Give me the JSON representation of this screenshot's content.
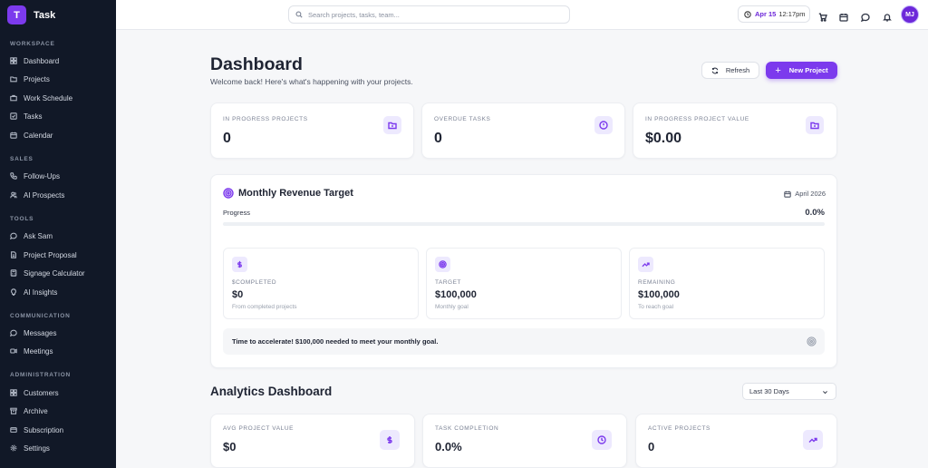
{
  "brand": {
    "logo_letter": "T",
    "name": "Task"
  },
  "sidebar": {
    "sections": [
      {
        "label": "WORKSPACE",
        "items": [
          "Dashboard",
          "Projects",
          "Work Schedule",
          "Tasks",
          "Calendar"
        ]
      },
      {
        "label": "SALES",
        "items": [
          "Follow-Ups",
          "AI Prospects"
        ]
      },
      {
        "label": "TOOLS",
        "items": [
          "Ask Sam",
          "Project Proposal",
          "Signage Calculator",
          "AI Insights"
        ]
      },
      {
        "label": "COMMUNICATION",
        "items": [
          "Messages",
          "Meetings"
        ]
      },
      {
        "label": "ADMINISTRATION",
        "items": [
          "Customers",
          "Archive",
          "Subscription",
          "Settings"
        ]
      }
    ]
  },
  "topbar": {
    "search_placeholder": "Search projects, tasks, team...",
    "date": "Apr 15",
    "time": "12:17pm",
    "avatar_initials": "MJ"
  },
  "header": {
    "title": "Dashboard",
    "subtitle": "Welcome back! Here's what's happening with your projects.",
    "refresh_label": "Refresh",
    "new_project_label": "New Project"
  },
  "stats": [
    {
      "label": "IN PROGRESS PROJECTS",
      "value": "0",
      "icon": "folder-icon"
    },
    {
      "label": "OVERDUE TASKS",
      "value": "0",
      "icon": "alert-circle-icon"
    },
    {
      "label": "IN PROGRESS PROJECT VALUE",
      "value": "$0.00",
      "icon": "folder-icon"
    }
  ],
  "revenue": {
    "title": "Monthly Revenue Target",
    "month": "April 2026",
    "progress_label": "Progress",
    "progress_value": "0.0%",
    "progress_fraction": 0.0,
    "cards": [
      {
        "label": "$COMPLETED",
        "value": "$0",
        "note": "From completed projects",
        "icon": "dollar-icon"
      },
      {
        "label": "TARGET",
        "value": "$100,000",
        "note": "Monthly goal",
        "icon": "target-icon"
      },
      {
        "label": "REMAINING",
        "value": "$100,000",
        "note": "To reach goal",
        "icon": "trending-up-icon"
      }
    ],
    "callout": "Time to accelerate! $100,000 needed to meet your monthly goal."
  },
  "analytics": {
    "title": "Analytics Dashboard",
    "range": "Last 30 Days",
    "stats": [
      {
        "label": "AVG PROJECT VALUE",
        "value": "$0",
        "icon": "dollar-icon"
      },
      {
        "label": "TASK COMPLETION",
        "value": "0.0%",
        "icon": "clock-icon"
      },
      {
        "label": "ACTIVE PROJECTS",
        "value": "0",
        "icon": "trending-up-icon"
      }
    ]
  }
}
